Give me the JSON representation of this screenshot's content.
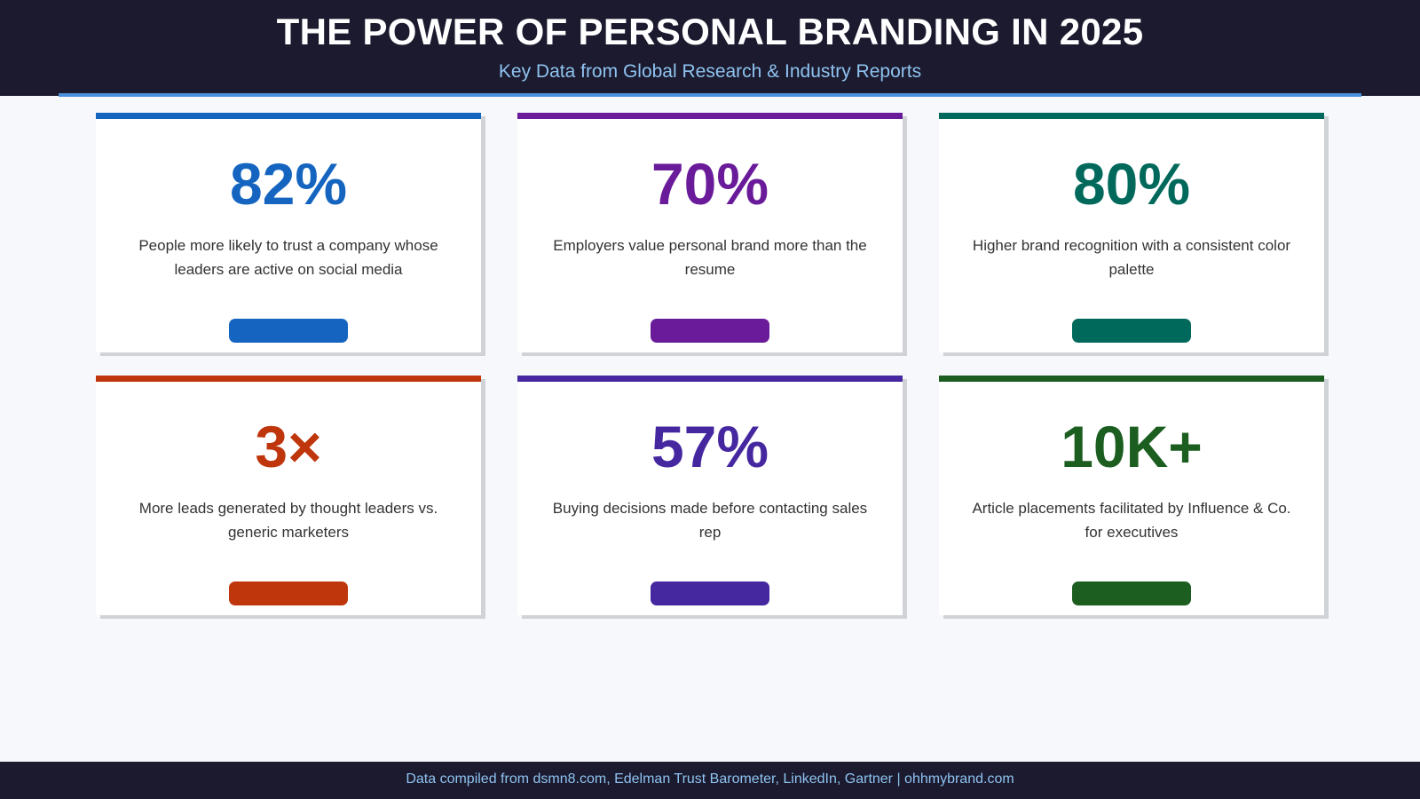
{
  "header": {
    "title": "THE POWER OF PERSONAL BRANDING IN 2025",
    "subtitle": "Key Data from Global Research & Industry Reports"
  },
  "cards": [
    {
      "value": "82%",
      "description": "People more likely to trust a company whose leaders are active on social media",
      "color": "#1565c0"
    },
    {
      "value": "70%",
      "description": "Employers value personal brand more than the resume",
      "color": "#6a1b9a"
    },
    {
      "value": "80%",
      "description": "Higher brand recognition with a consistent color palette",
      "color": "#00695c"
    },
    {
      "value": "3×",
      "description": "More leads generated by thought leaders vs. generic marketers",
      "color": "#bf360c"
    },
    {
      "value": "57%",
      "description": "Buying decisions made before contacting sales rep",
      "color": "#4527a0"
    },
    {
      "value": "10K+",
      "description": "Article placements facilitated by Influence & Co. for executives",
      "color": "#1b5e20"
    }
  ],
  "footer": {
    "text": "Data compiled from dsmn8.com, Edelman Trust Barometer, LinkedIn, Gartner | ohhmybrand.com"
  }
}
